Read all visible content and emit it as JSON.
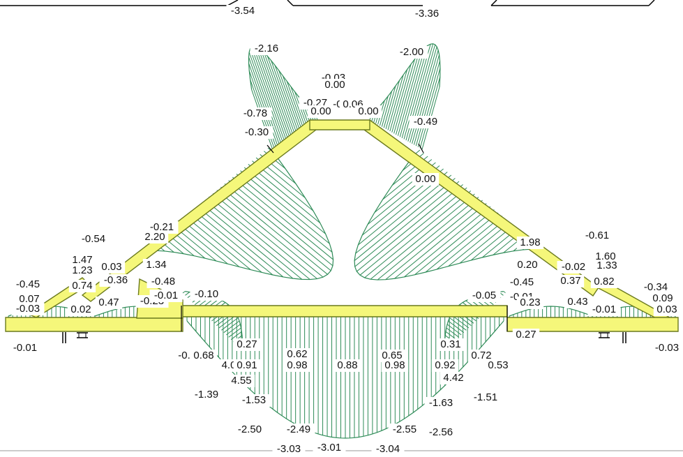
{
  "colors": {
    "member_fill": "#f5f77a",
    "member_edge": "#6b7a1e",
    "hatch": "#2e8b57",
    "line": "#000000",
    "label_bg": "#ffffff",
    "label_text": "#111111"
  },
  "labels": [
    {
      "id": "t1",
      "text": "-3.54"
    },
    {
      "id": "t2",
      "text": "-3.36"
    },
    {
      "id": "t3",
      "text": "-2.16"
    },
    {
      "id": "t4",
      "text": "-2.00"
    },
    {
      "id": "t5",
      "text": "-0.03"
    },
    {
      "id": "t6",
      "text": "0.00"
    },
    {
      "id": "t7",
      "text": "-0.27"
    },
    {
      "id": "t8",
      "text": "-0."
    },
    {
      "id": "t9",
      "text": "0.06"
    },
    {
      "id": "t10",
      "text": "0.00"
    },
    {
      "id": "t11",
      "text": "0.00"
    },
    {
      "id": "t12",
      "text": "-0.78"
    },
    {
      "id": "t13",
      "text": "-0.49"
    },
    {
      "id": "t14",
      "text": "-0.30"
    },
    {
      "id": "t15",
      "text": "0.00"
    },
    {
      "id": "t16",
      "text": "-0.54"
    },
    {
      "id": "t17",
      "text": "-0.21"
    },
    {
      "id": "t18",
      "text": "2.20"
    },
    {
      "id": "t19",
      "text": "1.47"
    },
    {
      "id": "t20",
      "text": "1.23"
    },
    {
      "id": "t21",
      "text": "0.03"
    },
    {
      "id": "t22",
      "text": "1.34"
    },
    {
      "id": "t23",
      "text": "-0.45"
    },
    {
      "id": "t24",
      "text": "0.74"
    },
    {
      "id": "t25",
      "text": "-0.36"
    },
    {
      "id": "t26",
      "text": "-0.48"
    },
    {
      "id": "t27",
      "text": "0.07"
    },
    {
      "id": "t28",
      "text": "-0.03"
    },
    {
      "id": "t29",
      "text": "0.02"
    },
    {
      "id": "t30",
      "text": "0.47"
    },
    {
      "id": "t31",
      "text": "-0.23"
    },
    {
      "id": "t32",
      "text": "-0.01"
    },
    {
      "id": "t33",
      "text": "-0.10"
    },
    {
      "id": "t34",
      "text": "-0.61"
    },
    {
      "id": "t35",
      "text": "1.98"
    },
    {
      "id": "t36",
      "text": "1.60"
    },
    {
      "id": "t37",
      "text": "0.20"
    },
    {
      "id": "t38",
      "text": "-0.02"
    },
    {
      "id": "t39",
      "text": "1.33"
    },
    {
      "id": "t40",
      "text": "-0.45"
    },
    {
      "id": "t41",
      "text": "0.37"
    },
    {
      "id": "t42",
      "text": "0.82"
    },
    {
      "id": "t43",
      "text": "-0.34"
    },
    {
      "id": "t44",
      "text": "-0.05"
    },
    {
      "id": "t45",
      "text": "-0.01"
    },
    {
      "id": "t46",
      "text": "0.23"
    },
    {
      "id": "t47",
      "text": "0.43"
    },
    {
      "id": "t48",
      "text": "-0.01"
    },
    {
      "id": "t49",
      "text": "0.03"
    },
    {
      "id": "t50",
      "text": "0.09"
    },
    {
      "id": "t51",
      "text": "0.27"
    },
    {
      "id": "t52",
      "text": "-0.01"
    },
    {
      "id": "t53",
      "text": "-0.03"
    },
    {
      "id": "t54",
      "text": "0.27"
    },
    {
      "id": "t55",
      "text": "-0."
    },
    {
      "id": "t56",
      "text": "0.68"
    },
    {
      "id": "t57",
      "text": "4.0"
    },
    {
      "id": "t58",
      "text": "0.91"
    },
    {
      "id": "t59",
      "text": "4.55"
    },
    {
      "id": "t60",
      "text": "0.62"
    },
    {
      "id": "t61",
      "text": "0.98"
    },
    {
      "id": "t62",
      "text": "0.88"
    },
    {
      "id": "t63",
      "text": "0.65"
    },
    {
      "id": "t64",
      "text": "0.98"
    },
    {
      "id": "t65",
      "text": "0.31"
    },
    {
      "id": "t66",
      "text": "0.92"
    },
    {
      "id": "t67",
      "text": "0.72"
    },
    {
      "id": "t68",
      "text": "0.53"
    },
    {
      "id": "t69",
      "text": "4.42"
    },
    {
      "id": "t70",
      "text": "-1.39"
    },
    {
      "id": "t71",
      "text": "-1.53"
    },
    {
      "id": "t72",
      "text": "-1.63"
    },
    {
      "id": "t73",
      "text": "-1.51"
    },
    {
      "id": "t74",
      "text": "-2.50"
    },
    {
      "id": "t75",
      "text": "-2.49"
    },
    {
      "id": "t76",
      "text": "-2.55"
    },
    {
      "id": "t77",
      "text": "-2.56"
    },
    {
      "id": "t78",
      "text": "-3.03"
    },
    {
      "id": "t79",
      "text": "-3.01"
    },
    {
      "id": "t80",
      "text": "-3.04"
    }
  ]
}
